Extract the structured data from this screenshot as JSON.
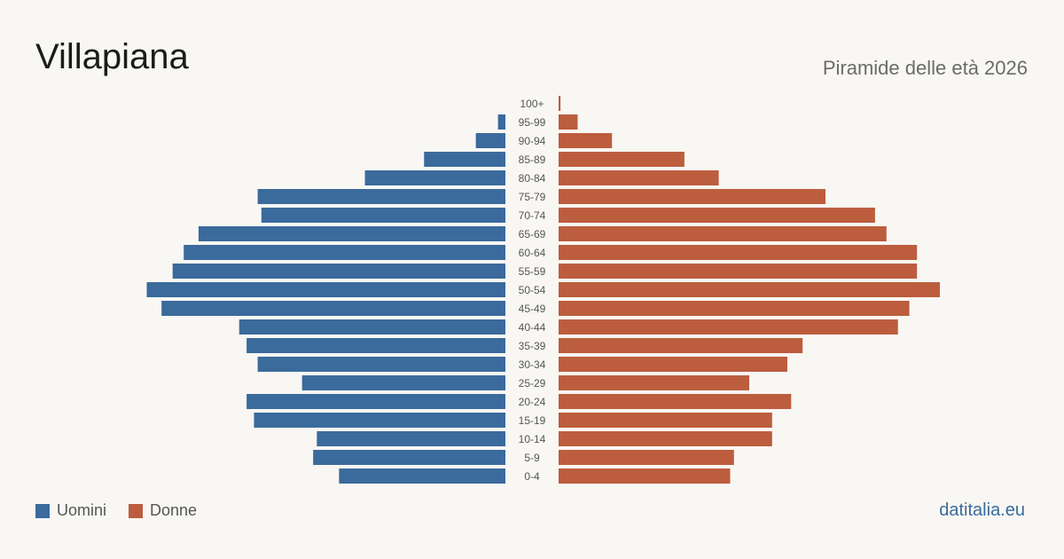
{
  "header": {
    "title": "Villapiana",
    "subtitle": "Piramide delle età 2026"
  },
  "legend": {
    "men_label": "Uomini",
    "women_label": "Donne"
  },
  "brand": "datitalia.eu",
  "colors": {
    "men": "#3b6a9c",
    "women": "#bc5d3e",
    "background": "#f9f7f3",
    "tick_text": "#555555"
  },
  "chart_data": {
    "type": "bar",
    "orientation": "horizontal-population-pyramid",
    "categories": [
      "100+",
      "95-99",
      "90-94",
      "85-89",
      "80-84",
      "75-79",
      "70-74",
      "65-69",
      "60-64",
      "55-59",
      "50-54",
      "45-49",
      "40-44",
      "35-39",
      "30-34",
      "25-29",
      "20-24",
      "15-19",
      "10-14",
      "5-9",
      "0-4"
    ],
    "series": [
      {
        "name": "Uomini",
        "values": [
          0,
          2,
          8,
          22,
          38,
          67,
          66,
          83,
          87,
          90,
          97,
          93,
          72,
          70,
          67,
          55,
          70,
          68,
          51,
          52,
          45
        ]
      },
      {
        "name": "Donne",
        "values": [
          0.5,
          5,
          14,
          33,
          42,
          70,
          83,
          86,
          94,
          94,
          100,
          92,
          89,
          64,
          60,
          50,
          61,
          56,
          56,
          46,
          45
        ]
      }
    ],
    "xlabel": "",
    "ylabel": "",
    "grid": false,
    "legend_position": "bottom-left"
  }
}
